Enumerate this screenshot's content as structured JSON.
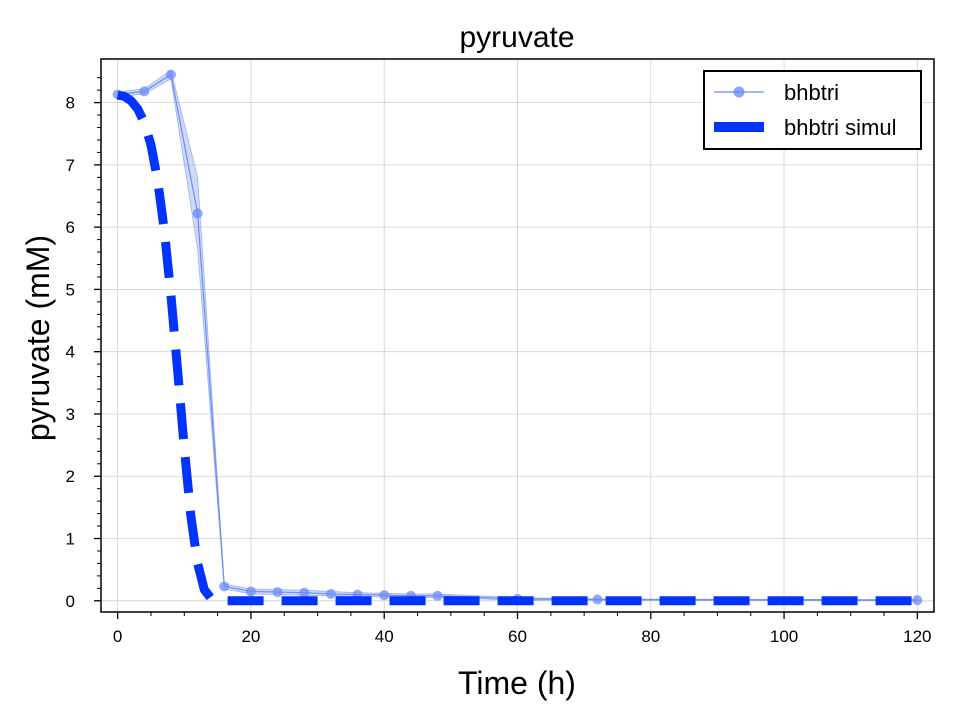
{
  "chart_data": {
    "type": "line",
    "title": "pyruvate",
    "xlabel": "Time (h)",
    "ylabel": "pyruvate (mM)",
    "xlim": [
      -2.5,
      122.5
    ],
    "ylim": [
      -0.18,
      8.7
    ],
    "xticks": [
      "0",
      "20",
      "40",
      "60",
      "80",
      "100",
      "120"
    ],
    "yticks": [
      "0",
      "1",
      "2",
      "3",
      "4",
      "5",
      "6",
      "7",
      "8"
    ],
    "grid": true,
    "legend_position": "top-right",
    "colors": {
      "measured": "#6b8cf7",
      "band": "#aab9f3",
      "simulated": "#0033ff"
    },
    "series": [
      {
        "name": "bhbtri",
        "style": "line-markers",
        "x": [
          0,
          4,
          8,
          12,
          16,
          20,
          24,
          28,
          32,
          36,
          40,
          44,
          48,
          60,
          72,
          120
        ],
        "y": [
          8.13,
          8.18,
          8.45,
          6.22,
          0.23,
          0.15,
          0.14,
          0.13,
          0.11,
          0.1,
          0.09,
          0.08,
          0.08,
          0.03,
          0.02,
          0.01
        ],
        "upper": [
          8.17,
          8.22,
          8.52,
          6.8,
          0.27,
          0.19,
          0.18,
          0.17,
          0.15,
          0.13,
          0.12,
          0.11,
          0.11,
          0.05,
          0.03,
          0.02
        ],
        "lower": [
          8.09,
          8.14,
          8.38,
          5.65,
          0.19,
          0.11,
          0.1,
          0.09,
          0.08,
          0.07,
          0.06,
          0.05,
          0.05,
          0.01,
          0.01,
          0.0
        ]
      },
      {
        "name": "bhbtri simul",
        "style": "dashed",
        "x": [
          0,
          1,
          2,
          3,
          4,
          5,
          6,
          7,
          8,
          9,
          10,
          11,
          12,
          13,
          14,
          15,
          16,
          20,
          40,
          60,
          80,
          100,
          120
        ],
        "y": [
          8.12,
          8.1,
          8.03,
          7.9,
          7.68,
          7.32,
          6.75,
          5.95,
          4.9,
          3.7,
          2.45,
          1.35,
          0.6,
          0.18,
          0.04,
          0.01,
          0.0,
          0.0,
          0.0,
          0.0,
          0.0,
          0.0,
          0.0
        ]
      }
    ]
  }
}
